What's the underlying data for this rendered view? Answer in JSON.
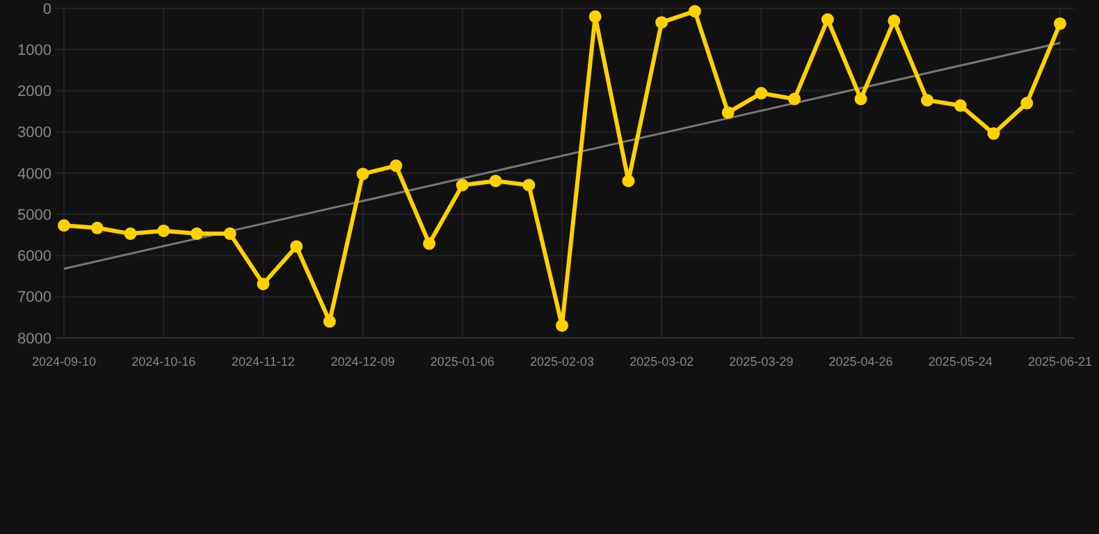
{
  "chart_data": {
    "type": "line",
    "categories": [
      "2024-09-10",
      null,
      null,
      "2024-10-16",
      null,
      null,
      "2024-11-12",
      null,
      null,
      "2024-12-09",
      null,
      null,
      "2025-01-06",
      null,
      null,
      "2025-02-03",
      null,
      null,
      "2025-03-02",
      null,
      null,
      "2025-03-29",
      null,
      null,
      "2025-04-26",
      null,
      null,
      "2025-05-24",
      null,
      null,
      "2025-06-21"
    ],
    "series": [
      {
        "color": "#ffd100",
        "values": [
          5270,
          5330,
          5470,
          5400,
          5470,
          5470,
          6690,
          5780,
          7600,
          4020,
          3820,
          5710,
          4290,
          4190,
          4290,
          7700,
          200,
          4190,
          340,
          70,
          2530,
          2060,
          2200,
          270,
          2200,
          300,
          2230,
          2360,
          3040,
          2300,
          370
        ]
      },
      {
        "type": "line",
        "color": "#777777",
        "marker": "none",
        "values": [
          6320,
          null,
          null,
          null,
          null,
          null,
          null,
          null,
          null,
          null,
          null,
          null,
          null,
          null,
          null,
          null,
          null,
          null,
          null,
          null,
          null,
          null,
          null,
          null,
          null,
          null,
          null,
          null,
          null,
          null,
          840
        ]
      }
    ],
    "ylim": [
      8000,
      0
    ],
    "yticks": [
      0,
      1000,
      2000,
      3000,
      4000,
      5000,
      6000,
      7000,
      8000
    ],
    "grid": true,
    "marker": "circle"
  }
}
